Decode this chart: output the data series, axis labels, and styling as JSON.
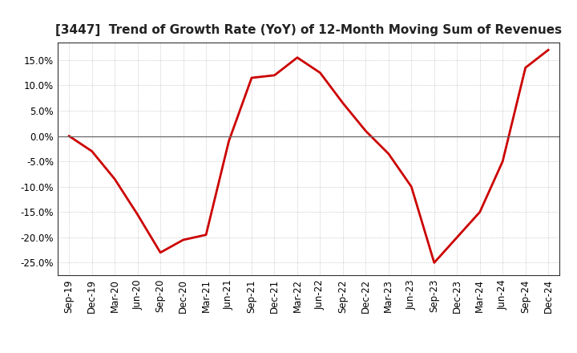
{
  "title": "[3447]  Trend of Growth Rate (YoY) of 12-Month Moving Sum of Revenues",
  "x_labels": [
    "Sep-19",
    "Dec-19",
    "Mar-20",
    "Jun-20",
    "Sep-20",
    "Dec-20",
    "Mar-21",
    "Jun-21",
    "Sep-21",
    "Dec-21",
    "Mar-22",
    "Jun-22",
    "Sep-22",
    "Dec-22",
    "Mar-23",
    "Jun-23",
    "Sep-23",
    "Dec-23",
    "Mar-24",
    "Jun-24",
    "Sep-24",
    "Dec-24"
  ],
  "y_values": [
    0.0,
    -3.0,
    -8.5,
    -15.5,
    -23.0,
    -20.5,
    -19.5,
    -1.0,
    11.5,
    12.0,
    15.5,
    12.5,
    6.5,
    1.0,
    -3.5,
    -10.0,
    -25.0,
    -20.0,
    -15.0,
    -5.0,
    13.5,
    17.0
  ],
  "line_color": "#cc0000",
  "line_width": 2.0,
  "ylim": [
    -27.5,
    18.5
  ],
  "yticks": [
    -25.0,
    -20.0,
    -15.0,
    -10.0,
    -5.0,
    0.0,
    5.0,
    10.0,
    15.0
  ],
  "ytick_labels": [
    "-25.0%",
    "-20.0%",
    "-15.0%",
    "-10.0%",
    "-5.0%",
    "0.0%",
    "5.0%",
    "10.0%",
    "15.0%"
  ],
  "background_color": "#ffffff",
  "plot_bg_color": "#ffffff",
  "grid_color": "#aaaaaa",
  "title_fontsize": 11,
  "tick_fontsize": 8.5,
  "zero_line_color": "#666666",
  "spine_color": "#333333"
}
